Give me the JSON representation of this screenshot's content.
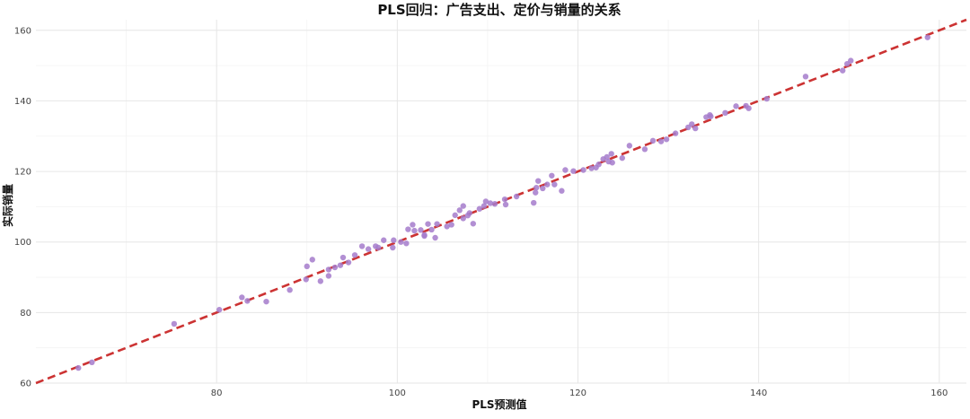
{
  "chart_data": {
    "type": "scatter",
    "title": "PLS回归：广告支出、定价与销量的关系",
    "xlabel": "PLS预测值",
    "ylabel": "实际销量",
    "xlim": [
      60,
      163
    ],
    "ylim": [
      60,
      163
    ],
    "x_ticks": [
      80,
      100,
      120,
      140,
      160
    ],
    "y_ticks": [
      60,
      80,
      100,
      120,
      140,
      160
    ],
    "grid": true,
    "legend": "none",
    "point_color": "#a57bcb",
    "line_color": "#cc3333",
    "reference_line": {
      "type": "identity",
      "style": "dashed"
    },
    "points": [
      [
        64.7,
        64.3
      ],
      [
        66.2,
        65.9
      ],
      [
        75.3,
        76.8
      ],
      [
        80.3,
        80.8
      ],
      [
        82.8,
        84.3
      ],
      [
        83.4,
        83.3
      ],
      [
        85.5,
        83.1
      ],
      [
        88.1,
        86.4
      ],
      [
        89.9,
        89.4
      ],
      [
        90.0,
        93.1
      ],
      [
        90.6,
        95.0
      ],
      [
        91.5,
        88.9
      ],
      [
        92.4,
        90.4
      ],
      [
        92.4,
        92.2
      ],
      [
        93.1,
        92.8
      ],
      [
        93.7,
        93.4
      ],
      [
        94.0,
        95.6
      ],
      [
        94.6,
        94.2
      ],
      [
        95.3,
        96.3
      ],
      [
        96.1,
        98.8
      ],
      [
        96.8,
        98.0
      ],
      [
        97.6,
        98.8
      ],
      [
        97.9,
        98.4
      ],
      [
        98.5,
        100.5
      ],
      [
        99.5,
        98.4
      ],
      [
        99.6,
        100.5
      ],
      [
        100.4,
        100.0
      ],
      [
        101.0,
        99.6
      ],
      [
        101.2,
        103.6
      ],
      [
        101.7,
        104.9
      ],
      [
        101.9,
        103.2
      ],
      [
        102.6,
        103.4
      ],
      [
        103.0,
        102.0
      ],
      [
        103.0,
        101.7
      ],
      [
        103.4,
        105.1
      ],
      [
        103.8,
        103.5
      ],
      [
        104.2,
        101.2
      ],
      [
        104.4,
        105.1
      ],
      [
        105.5,
        104.4
      ],
      [
        106.0,
        104.9
      ],
      [
        106.4,
        107.6
      ],
      [
        106.9,
        109.0
      ],
      [
        107.3,
        106.7
      ],
      [
        107.3,
        110.2
      ],
      [
        107.8,
        107.5
      ],
      [
        108.0,
        108.2
      ],
      [
        108.4,
        105.2
      ],
      [
        109.1,
        109.4
      ],
      [
        109.6,
        110.2
      ],
      [
        109.8,
        111.5
      ],
      [
        110.3,
        111.0
      ],
      [
        110.8,
        110.8
      ],
      [
        111.9,
        112.1
      ],
      [
        112.0,
        110.6
      ],
      [
        113.2,
        112.9
      ],
      [
        115.1,
        111.1
      ],
      [
        115.3,
        114.0
      ],
      [
        115.6,
        117.3
      ],
      [
        115.4,
        115.4
      ],
      [
        116.1,
        115.2
      ],
      [
        116.6,
        116.3
      ],
      [
        117.1,
        118.8
      ],
      [
        117.4,
        116.3
      ],
      [
        118.2,
        114.5
      ],
      [
        118.6,
        120.4
      ],
      [
        119.5,
        120.1
      ],
      [
        120.6,
        120.4
      ],
      [
        121.5,
        120.9
      ],
      [
        122.0,
        121.1
      ],
      [
        122.3,
        122.0
      ],
      [
        122.8,
        123.5
      ],
      [
        123.2,
        124.1
      ],
      [
        123.4,
        122.8
      ],
      [
        123.8,
        122.5
      ],
      [
        123.7,
        125.0
      ],
      [
        124.9,
        123.8
      ],
      [
        125.7,
        127.3
      ],
      [
        127.4,
        126.3
      ],
      [
        128.3,
        128.7
      ],
      [
        129.2,
        128.5
      ],
      [
        129.8,
        129.1
      ],
      [
        130.8,
        130.8
      ],
      [
        132.2,
        132.5
      ],
      [
        132.6,
        133.4
      ],
      [
        133.0,
        132.2
      ],
      [
        134.2,
        135.4
      ],
      [
        134.6,
        136.0
      ],
      [
        134.7,
        135.6
      ],
      [
        136.3,
        136.6
      ],
      [
        137.5,
        138.5
      ],
      [
        138.6,
        138.6
      ],
      [
        138.9,
        137.9
      ],
      [
        140.9,
        140.6
      ],
      [
        145.2,
        146.9
      ],
      [
        149.3,
        148.6
      ],
      [
        149.8,
        150.5
      ],
      [
        150.2,
        151.4
      ],
      [
        158.7,
        158.0
      ]
    ]
  }
}
